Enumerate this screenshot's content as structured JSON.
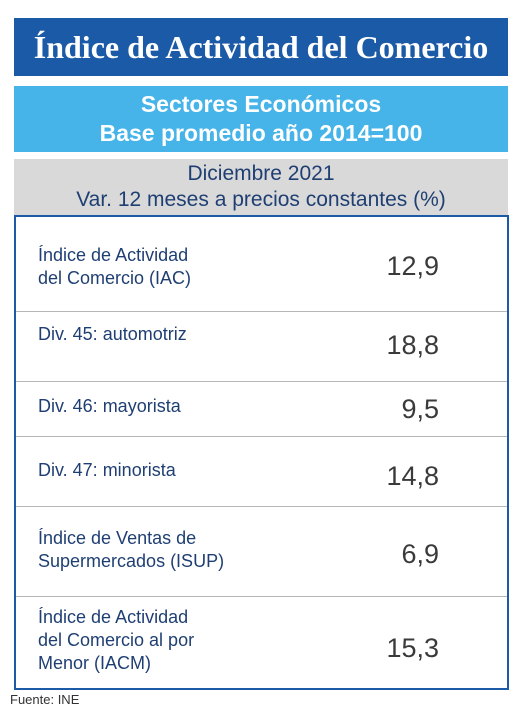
{
  "title": "Índice de Actividad del Comercio",
  "subtitle": {
    "line1": "Sectores Económicos",
    "line2": "Base promedio año 2014=100"
  },
  "period": {
    "line1": "Diciembre 2021",
    "line2": "Var. 12 meses a precios constantes (%)"
  },
  "rows": [
    {
      "label_lines": [
        "Índice de Actividad",
        "del Comercio (IAC)"
      ],
      "value": "12,9"
    },
    {
      "label_lines": [
        "Div. 45: automotriz"
      ],
      "value": "18,8"
    },
    {
      "label_lines": [
        "Div. 46: mayorista"
      ],
      "value": "9,5"
    },
    {
      "label_lines": [
        "Div. 47: minorista"
      ],
      "value": "14,8"
    },
    {
      "label_lines": [
        "Índice de Ventas de",
        "Supermercados (ISUP)"
      ],
      "value": "6,9"
    },
    {
      "label_lines": [
        "Índice de Actividad",
        "del Comercio al por",
        "Menor (IACM)"
      ],
      "value": "15,3"
    }
  ],
  "source": "Fuente: INE",
  "colors": {
    "title_bg": "#1b5aa6",
    "subtitle_bg": "#46b4e8",
    "period_bg": "#d9d9d9",
    "label_text": "#1f3f73"
  }
}
